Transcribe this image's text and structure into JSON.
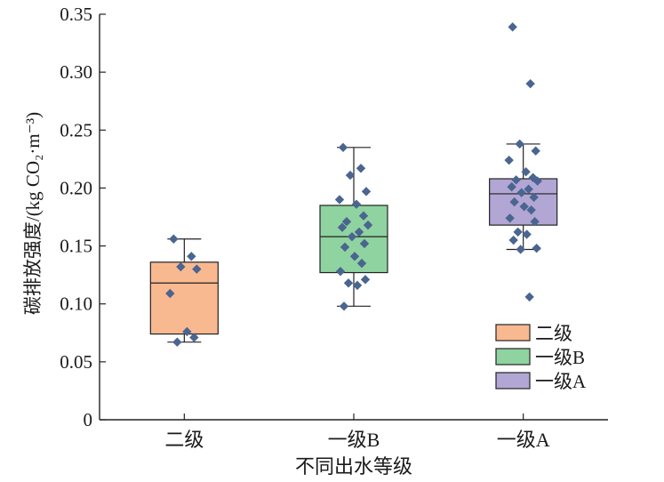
{
  "chart_data": {
    "type": "box",
    "title": "",
    "xlabel": "不同出水等级",
    "ylabel": "碳排放强度/(kg CO₂·m⁻³)",
    "ylim": [
      0,
      0.35
    ],
    "yticks": [
      0,
      0.05,
      0.1,
      0.15,
      0.2,
      0.25,
      0.3,
      0.35
    ],
    "ytick_labels": [
      "0",
      "0.05",
      "0.10",
      "0.15",
      "0.20",
      "0.25",
      "0.30",
      "0.35"
    ],
    "categories": [
      "二级",
      "一级B",
      "一级A"
    ],
    "grid": false,
    "legend_position": "bottom-right",
    "series": [
      {
        "name": "二级",
        "color": "#f9b990",
        "box": {
          "whisker_low": 0.067,
          "q1": 0.074,
          "median": 0.118,
          "q3": 0.136,
          "whisker_high": 0.156
        },
        "points": [
          0.156,
          0.141,
          0.132,
          0.13,
          0.109,
          0.076,
          0.071,
          0.067
        ]
      },
      {
        "name": "一级B",
        "color": "#8fd3a0",
        "box": {
          "whisker_low": 0.098,
          "q1": 0.127,
          "median": 0.158,
          "q3": 0.185,
          "whisker_high": 0.235
        },
        "points": [
          0.235,
          0.217,
          0.211,
          0.197,
          0.19,
          0.186,
          0.176,
          0.171,
          0.168,
          0.166,
          0.162,
          0.158,
          0.152,
          0.149,
          0.141,
          0.135,
          0.128,
          0.121,
          0.118,
          0.116,
          0.098
        ]
      },
      {
        "name": "一级A",
        "color": "#b2a6d4",
        "box": {
          "whisker_low": 0.147,
          "q1": 0.168,
          "median": 0.195,
          "q3": 0.208,
          "whisker_high": 0.238
        },
        "points": [
          0.339,
          0.29,
          0.238,
          0.232,
          0.224,
          0.214,
          0.209,
          0.207,
          0.206,
          0.201,
          0.199,
          0.196,
          0.192,
          0.188,
          0.184,
          0.181,
          0.174,
          0.171,
          0.162,
          0.16,
          0.155,
          0.148,
          0.147,
          0.106
        ]
      }
    ],
    "marker_color": "#4a6590"
  }
}
